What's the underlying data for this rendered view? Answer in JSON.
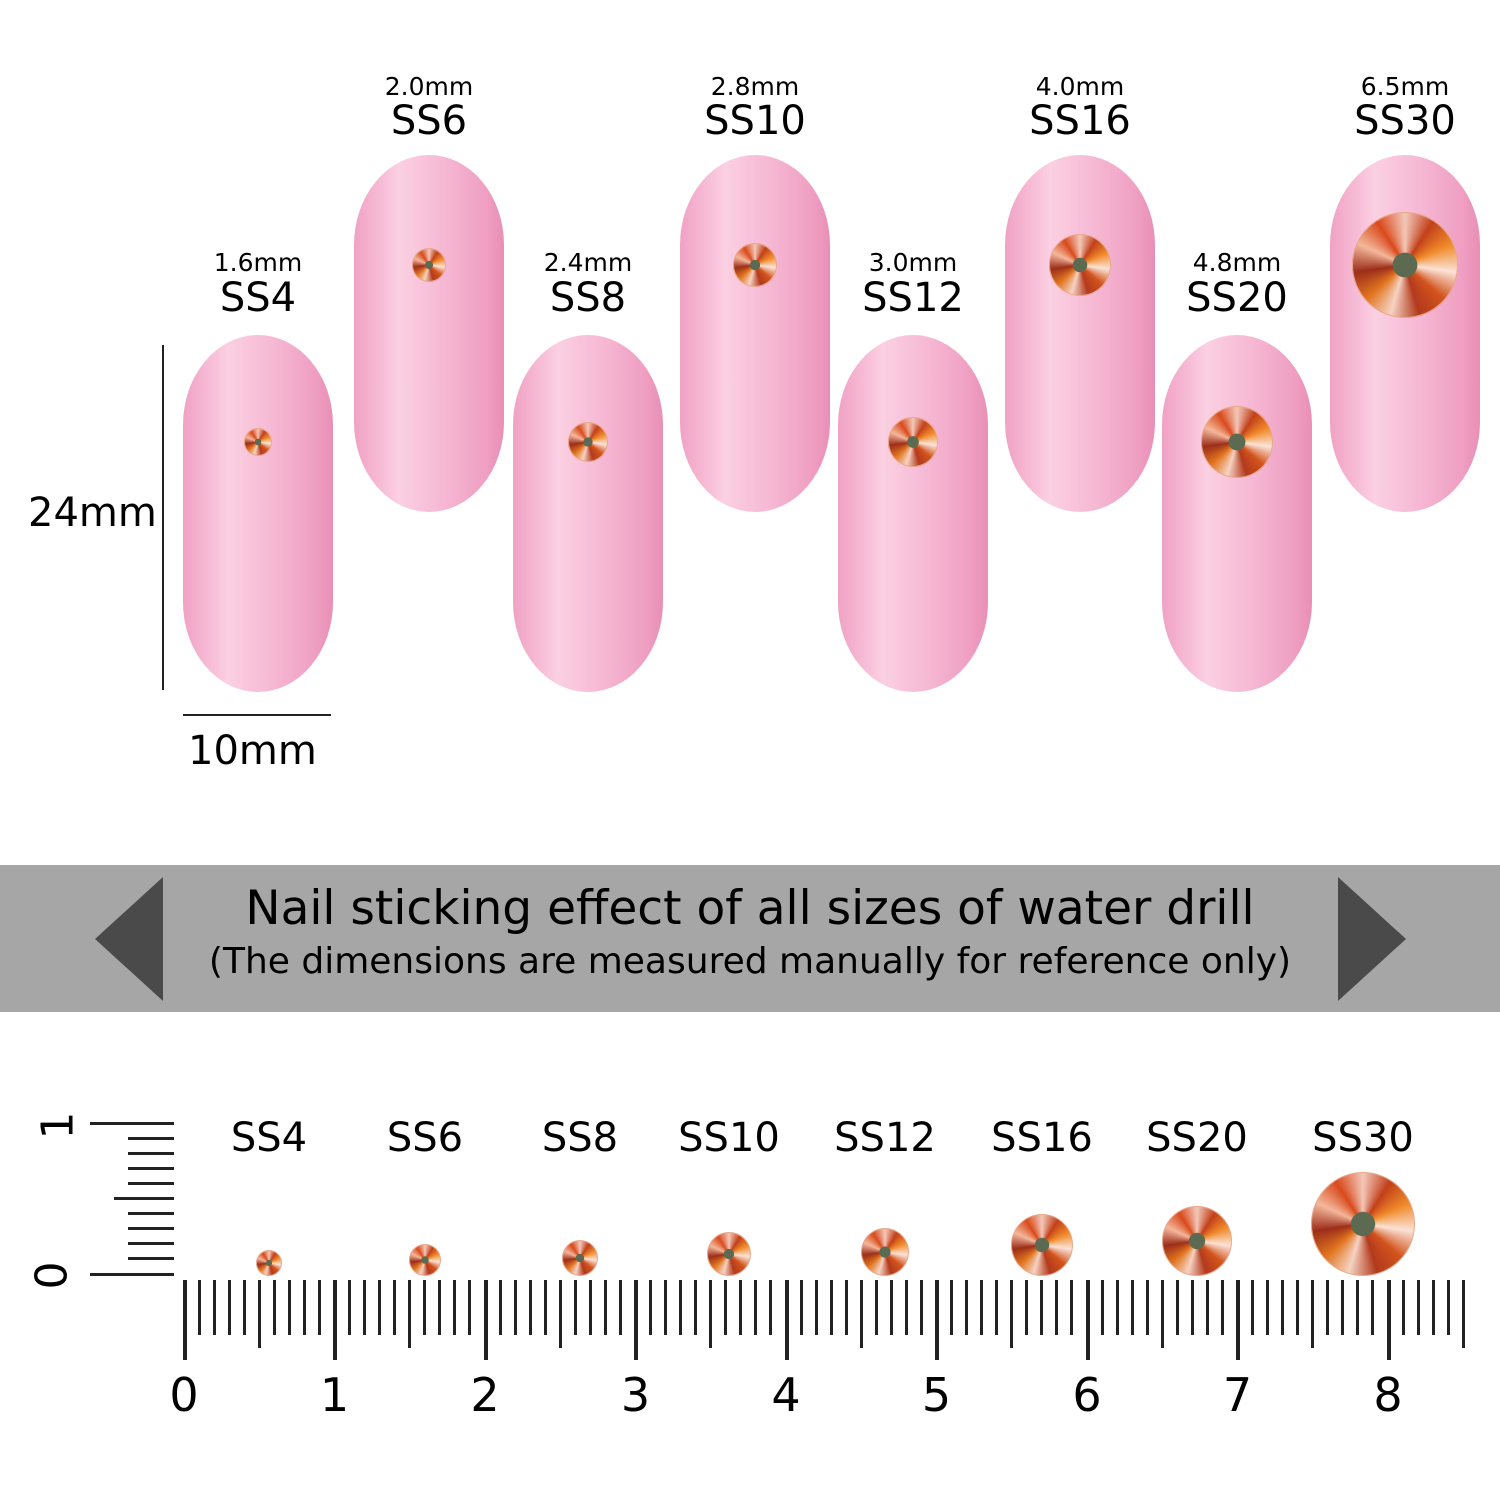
{
  "sizes": [
    {
      "ss": "SS4",
      "mm": "1.6mm"
    },
    {
      "ss": "SS6",
      "mm": "2.0mm"
    },
    {
      "ss": "SS8",
      "mm": "2.4mm"
    },
    {
      "ss": "SS10",
      "mm": "2.8mm"
    },
    {
      "ss": "SS12",
      "mm": "3.0mm"
    },
    {
      "ss": "SS16",
      "mm": "4.0mm"
    },
    {
      "ss": "SS20",
      "mm": "4.8mm"
    },
    {
      "ss": "SS30",
      "mm": "6.5mm"
    }
  ],
  "dimensions": {
    "height": "24mm",
    "width": "10mm"
  },
  "banner": {
    "title": "Nail sticking effect of all sizes of water drill",
    "subtitle": "(The dimensions are measured manually for reference only)"
  },
  "ruler": {
    "labels": [
      "0",
      "1",
      "2",
      "3",
      "4",
      "5",
      "6",
      "7",
      "8"
    ],
    "vertical_labels": [
      "0",
      "1"
    ]
  },
  "colors": {
    "nail": "#f7bcd6",
    "banner": "#a6a6a6",
    "stone": "#d2531c"
  }
}
